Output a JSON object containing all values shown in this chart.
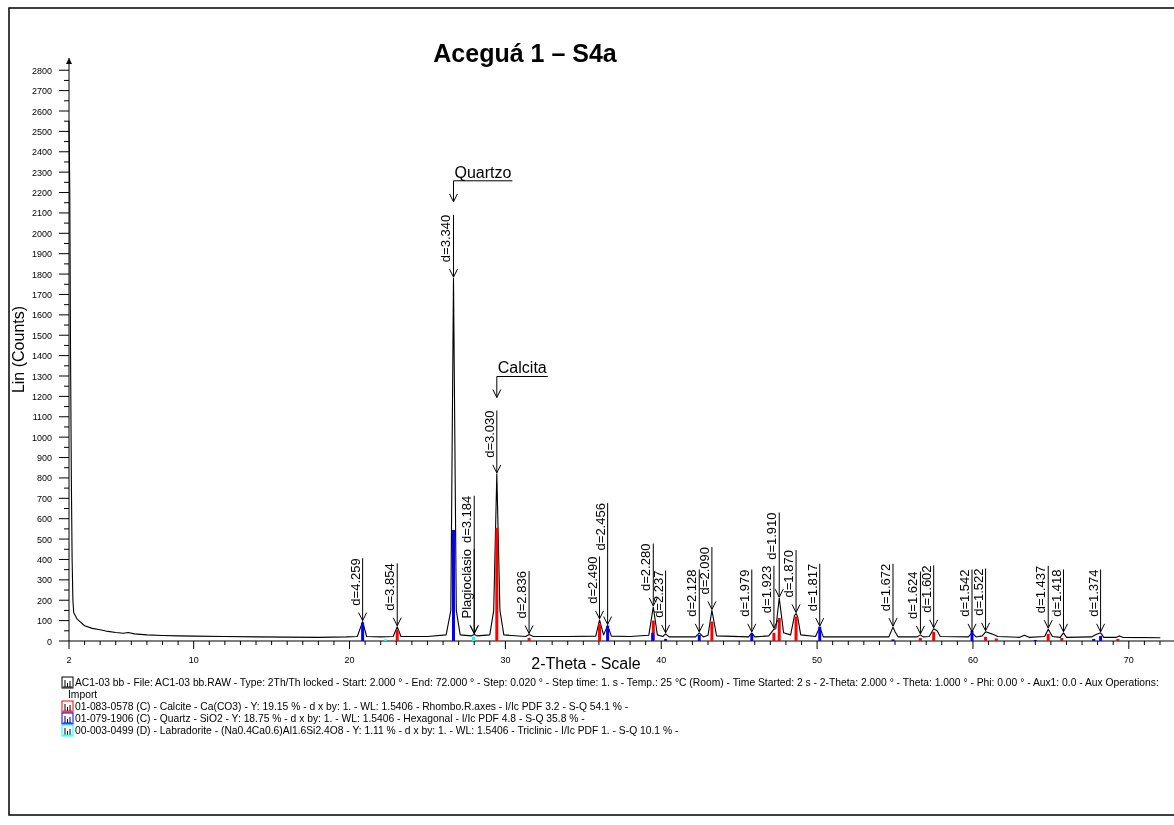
{
  "chart_data": {
    "type": "line",
    "title": "Aceguá 1 – S4a",
    "xlabel": "2-Theta - Scale",
    "ylabel": "Lin (Counts)",
    "xlim": [
      2,
      72.9
    ],
    "ylim": [
      0,
      2860
    ],
    "xticks": [
      2,
      10,
      20,
      30,
      40,
      50,
      60,
      70,
      {
        "value": 3,
        "label": null
      },
      {
        "value": 4,
        "label": null
      },
      {
        "value": 5,
        "label": null
      },
      {
        "value": 6,
        "label": null
      },
      {
        "value": 7,
        "label": null
      },
      {
        "value": 8,
        "label": null
      },
      {
        "value": 9,
        "label": null
      },
      {
        "value": 11,
        "label": null
      },
      {
        "value": 12,
        "label": null
      },
      {
        "value": 13,
        "label": null
      },
      {
        "value": 14,
        "label": null
      },
      {
        "value": 15,
        "label": null
      },
      {
        "value": 16,
        "label": null
      },
      {
        "value": 17,
        "label": null
      },
      {
        "value": 18,
        "label": null
      },
      {
        "value": 19,
        "label": null
      },
      {
        "value": 21,
        "label": null
      },
      {
        "value": 22,
        "label": null
      },
      {
        "value": 23,
        "label": null
      },
      {
        "value": 24,
        "label": null
      },
      {
        "value": 25,
        "label": null
      },
      {
        "value": 26,
        "label": null
      },
      {
        "value": 27,
        "label": null
      },
      {
        "value": 28,
        "label": null
      },
      {
        "value": 29,
        "label": null
      },
      {
        "value": 31,
        "label": null
      },
      {
        "value": 32,
        "label": null
      },
      {
        "value": 33,
        "label": null
      },
      {
        "value": 34,
        "label": null
      },
      {
        "value": 35,
        "label": null
      },
      {
        "value": 36,
        "label": null
      },
      {
        "value": 37,
        "label": null
      },
      {
        "value": 38,
        "label": null
      },
      {
        "value": 39,
        "label": null
      },
      {
        "value": 41,
        "label": null
      },
      {
        "value": 42,
        "label": null
      },
      {
        "value": 43,
        "label": null
      },
      {
        "value": 44,
        "label": null
      },
      {
        "value": 45,
        "label": null
      },
      {
        "value": 46,
        "label": null
      },
      {
        "value": 47,
        "label": null
      },
      {
        "value": 48,
        "label": null
      },
      {
        "value": 49,
        "label": null
      },
      {
        "value": 51,
        "label": null
      },
      {
        "value": 52,
        "label": null
      },
      {
        "value": 53,
        "label": null
      },
      {
        "value": 54,
        "label": null
      },
      {
        "value": 55,
        "label": null
      },
      {
        "value": 56,
        "label": null
      },
      {
        "value": 57,
        "label": null
      },
      {
        "value": 58,
        "label": null
      },
      {
        "value": 59,
        "label": null
      },
      {
        "value": 61,
        "label": null
      },
      {
        "value": 62,
        "label": null
      },
      {
        "value": 63,
        "label": null
      },
      {
        "value": 64,
        "label": null
      },
      {
        "value": 65,
        "label": null
      },
      {
        "value": 66,
        "label": null
      },
      {
        "value": 67,
        "label": null
      },
      {
        "value": 68,
        "label": null
      },
      {
        "value": 69,
        "label": null
      },
      {
        "value": 71,
        "label": null
      },
      {
        "value": 72,
        "label": null
      }
    ],
    "yticks": [
      0,
      100,
      200,
      300,
      400,
      500,
      600,
      700,
      800,
      900,
      1000,
      1100,
      1200,
      1300,
      1400,
      1500,
      1600,
      1700,
      1800,
      1900,
      2000,
      2100,
      2200,
      2300,
      2400,
      2500,
      2600,
      2700,
      2800,
      {
        "value": 50,
        "label": null
      },
      {
        "value": 150,
        "label": null
      },
      {
        "value": 250,
        "label": null
      },
      {
        "value": 350,
        "label": null
      },
      {
        "value": 450,
        "label": null
      },
      {
        "value": 550,
        "label": null
      },
      {
        "value": 650,
        "label": null
      },
      {
        "value": 750,
        "label": null
      },
      {
        "value": 850,
        "label": null
      },
      {
        "value": 950,
        "label": null
      },
      {
        "value": 1050,
        "label": null
      },
      {
        "value": 1150,
        "label": null
      },
      {
        "value": 1250,
        "label": null
      },
      {
        "value": 1350,
        "label": null
      },
      {
        "value": 1450,
        "label": null
      },
      {
        "value": 1550,
        "label": null
      },
      {
        "value": 1650,
        "label": null
      },
      {
        "value": 1750,
        "label": null
      },
      {
        "value": 1850,
        "label": null
      },
      {
        "value": 1950,
        "label": null
      },
      {
        "value": 2050,
        "label": null
      },
      {
        "value": 2150,
        "label": null
      },
      {
        "value": 2250,
        "label": null
      },
      {
        "value": 2350,
        "label": null
      },
      {
        "value": 2450,
        "label": null
      },
      {
        "value": 2550,
        "label": null
      },
      {
        "value": 2650,
        "label": null
      },
      {
        "value": 2750,
        "label": null
      }
    ],
    "legend": "bottom",
    "series": [
      {
        "name": "AC1-03 bb - File: AC1-03 bb.RAW - Type: 2Th/Th locked - Start: 2.000 ° - End: 72.000 ° - Step: 0.020 ° - Step time: 1. s - Temp.: 25 °C (Room) - Time Started: 2 s - 2-Theta: 2.000 ° - Theta: 1.000 ° - Phi: 0.00 ° - Aux1: 0.0 - Aux Operations: Import",
        "color": "#000000",
        "x": [
          2.0,
          2.05,
          2.1,
          2.15,
          2.2,
          2.25,
          2.3,
          2.4,
          2.5,
          2.7,
          3.0,
          3.5,
          4.0,
          4.5,
          5.0,
          5.5,
          5.8,
          6.2,
          7.0,
          8.0,
          9.0,
          10.0,
          12.0,
          14.0,
          16.0,
          18.0,
          19.8,
          20.5,
          20.84,
          21.1,
          22.0,
          22.8,
          23.06,
          23.3,
          25.0,
          26.2,
          26.5,
          26.67,
          26.85,
          27.1,
          27.8,
          28.0,
          28.2,
          29.0,
          29.25,
          29.45,
          29.65,
          29.9,
          31.3,
          31.52,
          31.8,
          34.0,
          35.8,
          36.04,
          36.3,
          36.56,
          36.8,
          38.0,
          39.2,
          39.49,
          39.75,
          40.1,
          40.28,
          40.5,
          42.2,
          42.44,
          42.7,
          43.0,
          43.25,
          43.55,
          45.6,
          45.81,
          46.0,
          46.9,
          47.23,
          47.35,
          47.57,
          47.85,
          48.3,
          48.55,
          48.65,
          48.75,
          48.95,
          49.9,
          50.17,
          50.4,
          54.6,
          54.87,
          55.0,
          55.2,
          56.4,
          56.63,
          56.8,
          57.2,
          57.48,
          57.7,
          57.9,
          59.7,
          59.94,
          60.2,
          60.6,
          60.81,
          61.2,
          61.6,
          63.0,
          63.3,
          63.6,
          64.6,
          64.83,
          65.1,
          65.6,
          65.81,
          66.0,
          67.6,
          67.9,
          68.19,
          68.4,
          69.2,
          69.4,
          69.6,
          72.0
        ],
        "values": [
          2550,
          2200,
          1400,
          800,
          400,
          200,
          140,
          125,
          110,
          95,
          75,
          62,
          55,
          47,
          42,
          38,
          42,
          35,
          30,
          27,
          25,
          24,
          22,
          20,
          19,
          18,
          20,
          22,
          95,
          22,
          20,
          22,
          70,
          22,
          22,
          30,
          150,
          1780,
          150,
          30,
          25,
          32,
          25,
          30,
          150,
          820,
          150,
          30,
          22,
          32,
          22,
          22,
          24,
          104,
          30,
          76,
          24,
          22,
          28,
          167,
          30,
          22,
          35,
          20,
          20,
          40,
          20,
          28,
          150,
          25,
          20,
          40,
          20,
          25,
          58,
          60,
          210,
          40,
          30,
          125,
          135,
          120,
          30,
          22,
          68,
          20,
          20,
          68,
          45,
          20,
          20,
          30,
          20,
          22,
          60,
          50,
          22,
          20,
          40,
          20,
          25,
          45,
          35,
          22,
          18,
          28,
          18,
          22,
          58,
          22,
          18,
          40,
          18,
          20,
          32,
          40,
          18,
          18,
          25,
          18,
          16
        ]
      },
      {
        "type": "bar",
        "name": "01-083-0578 (C) - Calcite - Ca(CO3) - Y: 19.15 % - d x by: 1. - WL: 1.5406 - Rhombo.R.axes - I/Ic PDF 3.2 - S-Q 54.1 % -",
        "color": "#ff0000",
        "x": [
          23.06,
          29.45,
          31.52,
          36.04,
          39.49,
          43.25,
          47.23,
          47.57,
          48.65,
          56.63,
          57.48,
          60.81,
          61.5,
          64.83,
          65.7,
          69.3
        ],
        "values": [
          55,
          555,
          15,
          85,
          100,
          95,
          40,
          113,
          120,
          15,
          45,
          20,
          12,
          35,
          15,
          10
        ]
      },
      {
        "type": "bar",
        "name": "01-079-1906 (C) - Quartz - SiO2 - Y: 18.75 % - d x by: 1. - WL: 1.5406 - Hexagonal - I/Ic PDF 4.8 - S-Q 35.8 % -",
        "color": "#0000ff",
        "x": [
          20.84,
          26.67,
          36.56,
          39.45,
          40.28,
          42.44,
          45.81,
          50.17,
          54.87,
          59.94,
          64.0,
          67.75,
          68.19
        ],
        "values": [
          90,
          545,
          75,
          40,
          10,
          30,
          35,
          70,
          8,
          50,
          5,
          10,
          25
        ]
      },
      {
        "type": "bar",
        "name": "00-003-0499 (D) - Labradorite - (Na0.4Ca0.6)Al1.6Si2.4O8 - Y: 1.11 % - d x by: 1. - WL: 1.5406 - Triclinic - I/Ic PDF 1. - S-Q 10.1 % -",
        "color": "#00ffff",
        "x": [
          22.3,
          27.95
        ],
        "values": [
          8,
          20
        ]
      }
    ],
    "annotations": [
      "Quartzo",
      "Calcita",
      {
        "text": "Plagioclásio",
        "x": 28.0,
        "y": 32
      },
      {
        "text": "d=4.259",
        "x": 20.84,
        "y": 95
      },
      {
        "text": "d=3.854",
        "x": 23.06,
        "y": 70
      },
      {
        "text": "d=3.340",
        "x": 26.67,
        "y": 1780
      },
      {
        "text": "d=3.184",
        "x": 28.0,
        "y": 32
      },
      {
        "text": "d=3.030",
        "x": 29.45,
        "y": 820
      },
      {
        "text": "d=2.836",
        "x": 31.52,
        "y": 32
      },
      {
        "text": "d=2.490",
        "x": 36.04,
        "y": 104
      },
      {
        "text": "d=2.456",
        "x": 36.56,
        "y": 76
      },
      {
        "text": "d=2.280",
        "x": 39.49,
        "y": 167
      },
      {
        "text": "d=2.237",
        "x": 40.28,
        "y": 35
      },
      {
        "text": "d=2.128",
        "x": 42.44,
        "y": 40
      },
      {
        "text": "d=2.090",
        "x": 43.25,
        "y": 150
      },
      {
        "text": "d=1.979",
        "x": 45.81,
        "y": 40
      },
      {
        "text": "d=1.923",
        "x": 47.23,
        "y": 58
      },
      {
        "text": "d=1.910",
        "x": 47.57,
        "y": 210
      },
      {
        "text": "d=1.870",
        "x": 48.65,
        "y": 135
      },
      {
        "text": "d=1.817",
        "x": 50.17,
        "y": 68
      },
      {
        "text": "d=1.672",
        "x": 54.87,
        "y": 68
      },
      {
        "text": "d=1.624",
        "x": 56.63,
        "y": 30
      },
      {
        "text": "d=1.602",
        "x": 57.48,
        "y": 60
      },
      {
        "text": "d=1.542",
        "x": 59.94,
        "y": 40
      },
      {
        "text": "d=1.522",
        "x": 60.81,
        "y": 45
      },
      {
        "text": "d=1.437",
        "x": 64.83,
        "y": 58
      },
      {
        "text": "d=1.418",
        "x": 65.81,
        "y": 40
      },
      {
        "text": "d=1.374",
        "x": 68.19,
        "y": 40
      }
    ]
  }
}
